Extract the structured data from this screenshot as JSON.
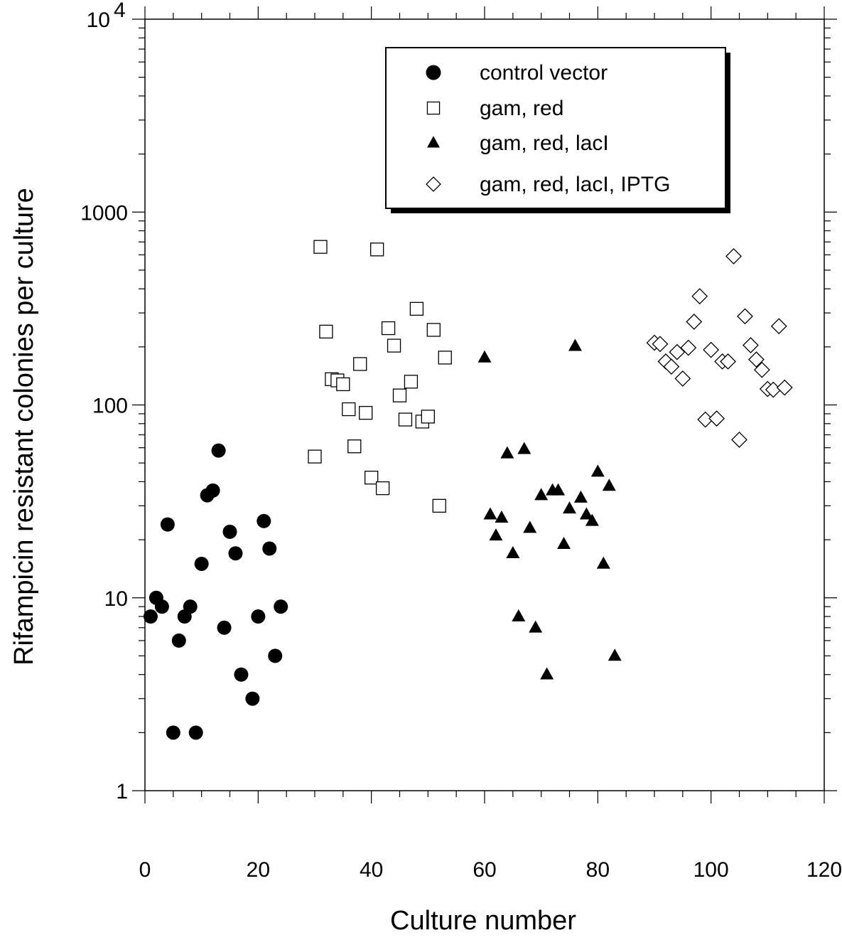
{
  "chart_data": {
    "type": "scatter",
    "xlabel": "Culture number",
    "ylabel": "Rifampicin resistant colonies per culture",
    "xlim": [
      0,
      120
    ],
    "ylim": [
      1,
      10000
    ],
    "y_scale": "log",
    "x_ticks": [
      "0",
      "20",
      "40",
      "60",
      "80",
      "100",
      "120"
    ],
    "y_tick_labels": [
      {
        "value": 1,
        "base": "1",
        "exp": ""
      },
      {
        "value": 10,
        "base": "10",
        "exp": ""
      },
      {
        "value": 100,
        "base": "100",
        "exp": ""
      },
      {
        "value": 1000,
        "base": "1000",
        "exp": ""
      },
      {
        "value": 10000,
        "base": "10",
        "exp": "4"
      }
    ],
    "grid": false,
    "legend_position": "top-right",
    "series": [
      {
        "name": "control vector",
        "marker": "filled-circle",
        "points": [
          [
            1,
            8
          ],
          [
            2,
            10
          ],
          [
            3,
            9
          ],
          [
            4,
            24
          ],
          [
            5,
            2
          ],
          [
            6,
            6
          ],
          [
            7,
            8
          ],
          [
            8,
            9
          ],
          [
            9,
            2
          ],
          [
            10,
            15
          ],
          [
            11,
            34
          ],
          [
            12,
            36
          ],
          [
            13,
            58
          ],
          [
            14,
            7
          ],
          [
            15,
            22
          ],
          [
            16,
            17
          ],
          [
            17,
            4
          ],
          [
            19,
            3
          ],
          [
            20,
            8
          ],
          [
            21,
            25
          ],
          [
            22,
            18
          ],
          [
            23,
            5
          ],
          [
            24,
            9
          ]
        ]
      },
      {
        "name": "gam, red",
        "marker": "open-square",
        "points": [
          [
            30,
            54
          ],
          [
            31,
            660
          ],
          [
            32,
            240
          ],
          [
            33,
            136
          ],
          [
            34,
            134
          ],
          [
            35,
            128
          ],
          [
            36,
            95
          ],
          [
            37,
            61
          ],
          [
            38,
            163
          ],
          [
            39,
            91
          ],
          [
            40,
            42
          ],
          [
            41,
            640
          ],
          [
            42,
            37
          ],
          [
            43,
            250
          ],
          [
            44,
            203
          ],
          [
            45,
            112
          ],
          [
            46,
            84
          ],
          [
            47,
            132
          ],
          [
            48,
            315
          ],
          [
            49,
            82
          ],
          [
            50,
            87
          ],
          [
            51,
            245
          ],
          [
            52,
            30
          ],
          [
            53,
            176
          ]
        ]
      },
      {
        "name": "gam, red, lacI",
        "marker": "filled-triangle",
        "points": [
          [
            60,
            176
          ],
          [
            61,
            27
          ],
          [
            62,
            21
          ],
          [
            63,
            26
          ],
          [
            64,
            56
          ],
          [
            65,
            17
          ],
          [
            66,
            8
          ],
          [
            67,
            59
          ],
          [
            68,
            23
          ],
          [
            69,
            7
          ],
          [
            70,
            34
          ],
          [
            71,
            4
          ],
          [
            72,
            36
          ],
          [
            73,
            36
          ],
          [
            74,
            19
          ],
          [
            75,
            29
          ],
          [
            76,
            202
          ],
          [
            77,
            33
          ],
          [
            78,
            27
          ],
          [
            79,
            25
          ],
          [
            80,
            45
          ],
          [
            81,
            15
          ],
          [
            82,
            38
          ],
          [
            83,
            5
          ]
        ]
      },
      {
        "name": "gam, red, lacI, IPTG",
        "marker": "open-diamond",
        "points": [
          [
            90,
            210
          ],
          [
            91,
            207
          ],
          [
            92,
            168
          ],
          [
            93,
            158
          ],
          [
            94,
            188
          ],
          [
            95,
            137
          ],
          [
            96,
            198
          ],
          [
            97,
            270
          ],
          [
            98,
            366
          ],
          [
            99,
            84
          ],
          [
            100,
            193
          ],
          [
            101,
            85
          ],
          [
            102,
            168
          ],
          [
            103,
            168
          ],
          [
            104,
            590
          ],
          [
            105,
            66
          ],
          [
            106,
            288
          ],
          [
            107,
            204
          ],
          [
            108,
            172
          ],
          [
            109,
            152
          ],
          [
            110,
            121
          ],
          [
            111,
            120
          ],
          [
            112,
            256
          ],
          [
            113,
            123
          ]
        ]
      }
    ]
  }
}
